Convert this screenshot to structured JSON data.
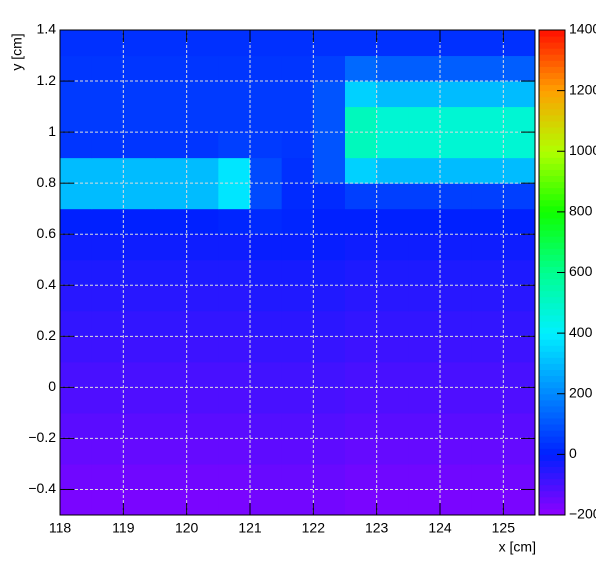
{
  "chart_data": {
    "type": "heatmap",
    "x_label": "x [cm]",
    "y_label": "y [cm]",
    "x_edges": [
      118,
      118.5,
      119,
      119.5,
      120,
      120.5,
      121,
      121.5,
      122,
      122.5,
      123,
      123.5,
      124,
      124.5,
      125,
      125.5
    ],
    "y_edges": [
      -0.5,
      -0.4,
      -0.3,
      -0.2,
      -0.1,
      0,
      0.1,
      0.2,
      0.3,
      0.4,
      0.5,
      0.6,
      0.7,
      0.8,
      0.9,
      1.0,
      1.1,
      1.2,
      1.3,
      1.4
    ],
    "z": [
      [
        -170,
        -170,
        -170,
        -170,
        -170,
        -170,
        -160,
        -160,
        -160,
        -170,
        -170,
        -170,
        -170,
        -170,
        -170
      ],
      [
        -155,
        -155,
        -155,
        -155,
        -155,
        -155,
        -145,
        -145,
        -145,
        -155,
        -155,
        -155,
        -155,
        -155,
        -155
      ],
      [
        -140,
        -140,
        -140,
        -140,
        -140,
        -140,
        -130,
        -130,
        -130,
        -140,
        -140,
        -140,
        -140,
        -140,
        -140
      ],
      [
        -125,
        -125,
        -125,
        -125,
        -125,
        -125,
        -115,
        -115,
        -115,
        -125,
        -125,
        -125,
        -125,
        -125,
        -125
      ],
      [
        -110,
        -110,
        -110,
        -110,
        -110,
        -110,
        -100,
        -100,
        -100,
        -110,
        -110,
        -110,
        -110,
        -110,
        -110
      ],
      [
        -100,
        -100,
        -100,
        -100,
        -100,
        -100,
        -90,
        -90,
        -90,
        -100,
        -100,
        -100,
        -100,
        -100,
        -100
      ],
      [
        -85,
        -85,
        -85,
        -85,
        -85,
        -85,
        -75,
        -75,
        -75,
        -85,
        -85,
        -85,
        -85,
        -85,
        -85
      ],
      [
        -70,
        -70,
        -70,
        -70,
        -70,
        -70,
        -60,
        -60,
        -60,
        -70,
        -70,
        -70,
        -70,
        -70,
        -70
      ],
      [
        -55,
        -55,
        -55,
        -55,
        -55,
        -55,
        -45,
        -45,
        -45,
        -55,
        -55,
        -55,
        -55,
        -55,
        -55
      ],
      [
        -40,
        -40,
        -40,
        -40,
        -40,
        -40,
        -30,
        -30,
        -30,
        -40,
        -40,
        -40,
        -40,
        -40,
        -40
      ],
      [
        -20,
        -20,
        -20,
        -20,
        -20,
        -20,
        -10,
        -10,
        -10,
        -20,
        -20,
        -20,
        -20,
        -20,
        -20
      ],
      [
        0,
        0,
        0,
        0,
        0,
        10,
        20,
        10,
        0,
        0,
        0,
        0,
        0,
        0,
        0
      ],
      [
        300,
        300,
        300,
        300,
        300,
        380,
        80,
        20,
        20,
        60,
        60,
        60,
        60,
        60,
        60
      ],
      [
        300,
        300,
        300,
        300,
        300,
        380,
        80,
        30,
        100,
        340,
        300,
        300,
        300,
        300,
        300
      ],
      [
        40,
        40,
        40,
        40,
        40,
        60,
        50,
        40,
        100,
        520,
        480,
        480,
        480,
        480,
        480
      ],
      [
        50,
        50,
        50,
        50,
        50,
        50,
        50,
        50,
        100,
        520,
        480,
        480,
        480,
        480,
        480
      ],
      [
        50,
        50,
        50,
        50,
        50,
        50,
        50,
        50,
        100,
        340,
        300,
        300,
        300,
        300,
        300
      ],
      [
        40,
        40,
        40,
        40,
        40,
        40,
        40,
        40,
        60,
        140,
        120,
        120,
        120,
        120,
        120
      ],
      [
        30,
        30,
        30,
        30,
        30,
        30,
        30,
        30,
        30,
        30,
        30,
        30,
        30,
        30,
        30
      ]
    ],
    "xlim": [
      118,
      125.5
    ],
    "ylim": [
      -0.5,
      1.4
    ],
    "zlim": [
      -200,
      1400
    ],
    "xticks": [
      118,
      119,
      120,
      121,
      122,
      123,
      124,
      125
    ],
    "yticks": [
      {
        "value": -0.4,
        "label": "−0.4"
      },
      {
        "value": -0.2,
        "label": "−0.2"
      },
      0,
      0.2,
      0.4,
      0.6,
      0.8,
      1,
      1.2,
      1.4
    ],
    "zticks": [
      {
        "value": -200,
        "label": "−200"
      },
      0,
      200,
      400,
      600,
      800,
      1000,
      1200,
      1400
    ],
    "colormap": [
      "#9000ff",
      "#0020ff",
      "#0088ff",
      "#00f0ff",
      "#00ff90",
      "#10ff00",
      "#b0ff00",
      "#ffa000",
      "#ff1000"
    ],
    "grid": true
  }
}
